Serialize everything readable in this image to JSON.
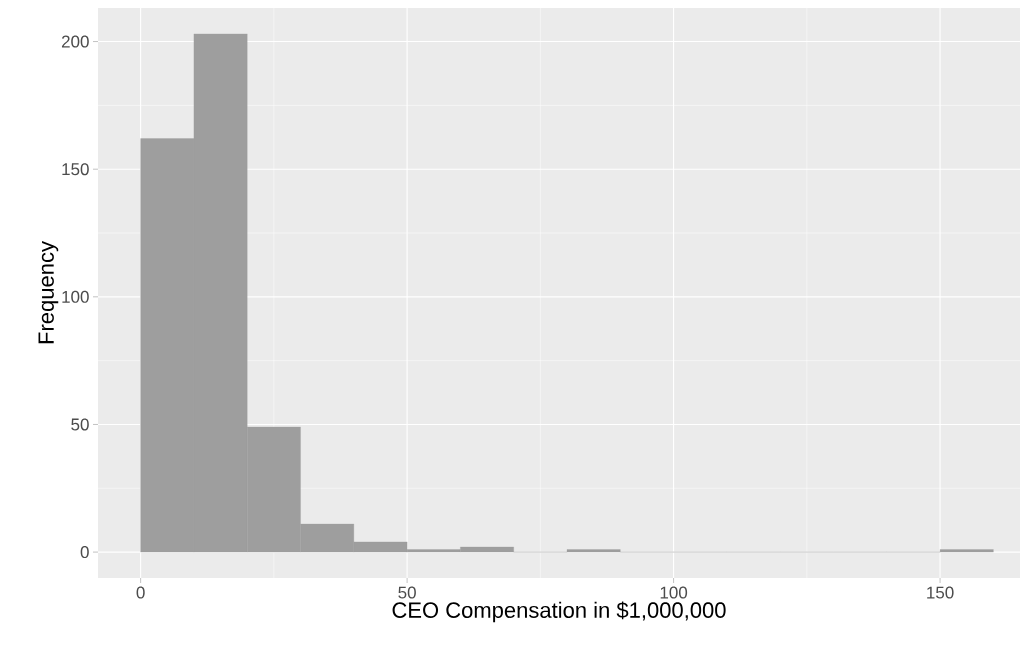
{
  "chart_data": {
    "type": "histogram",
    "xlabel": "CEO Compensation in $1,000,000",
    "ylabel": "Frequency",
    "bins": [
      0,
      10,
      20,
      30,
      40,
      50,
      60,
      70,
      80,
      90,
      100,
      110,
      120,
      130,
      140,
      150,
      160
    ],
    "values": [
      162,
      203,
      49,
      11,
      4,
      1,
      2,
      0,
      1,
      0,
      0,
      0,
      0,
      0,
      0,
      1
    ],
    "color": "#9e9e9e",
    "xlim": [
      -8,
      165
    ],
    "ylim": [
      -10.15,
      213.15
    ],
    "xticks": [
      0,
      50,
      100,
      150
    ],
    "yticks": [
      0,
      50,
      100,
      150,
      200
    ],
    "grid": true
  }
}
